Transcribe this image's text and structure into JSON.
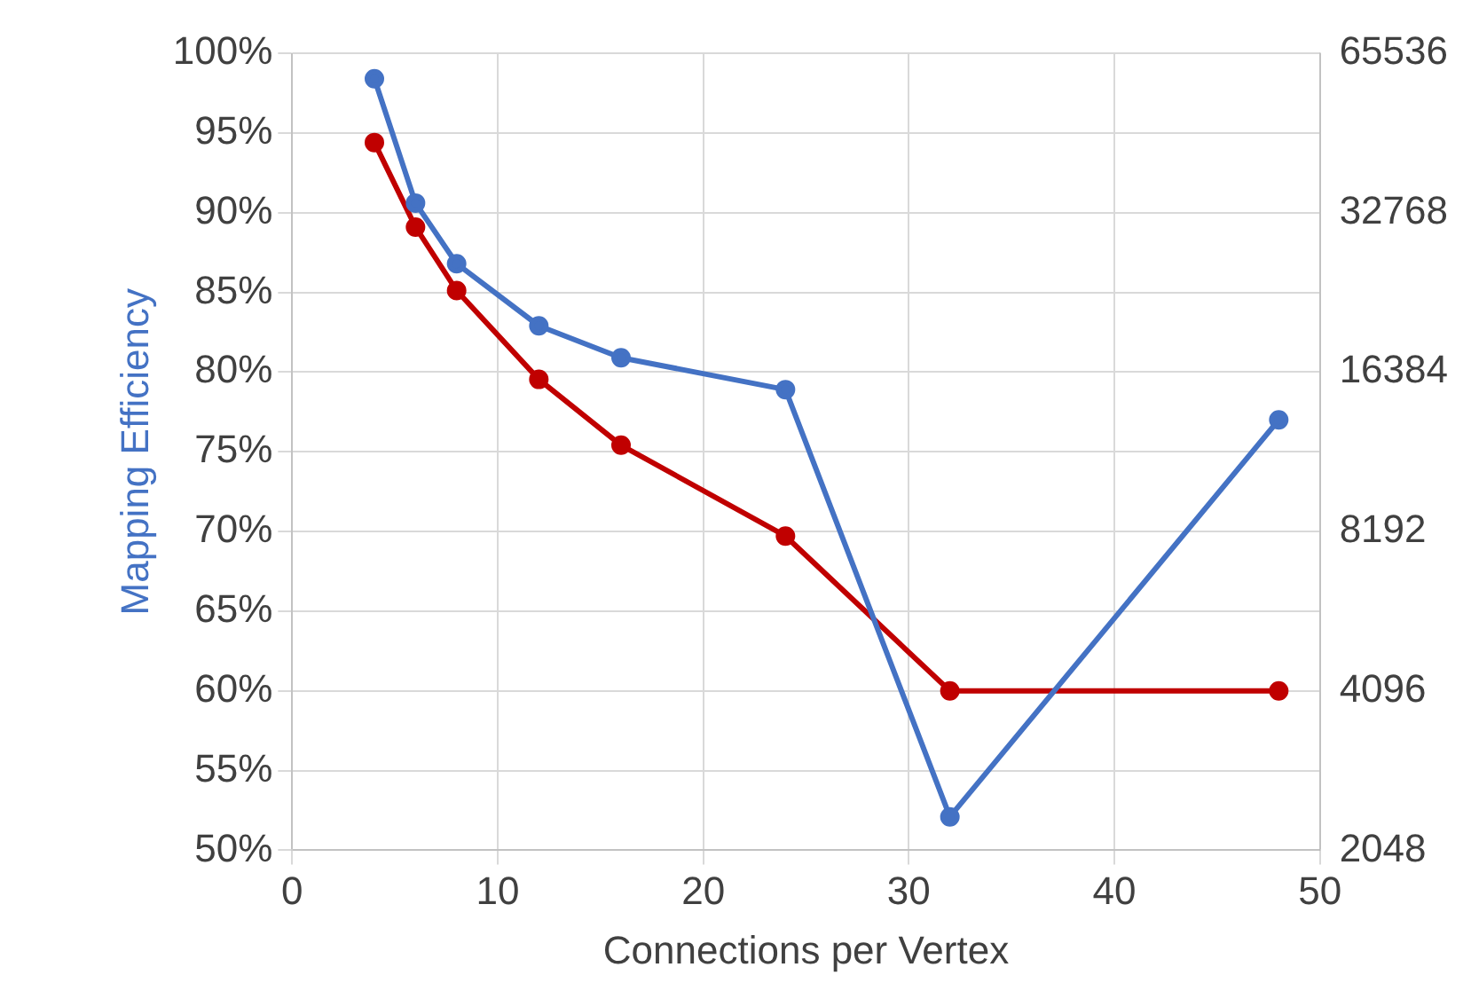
{
  "chart_data": {
    "type": "line",
    "xlabel": "Connections per Vertex",
    "ylabel": "Mapping Efficiency",
    "x": [
      4,
      6,
      8,
      12,
      16,
      24,
      32,
      48
    ],
    "series": [
      {
        "color": "#4472c4",
        "values": [
          98.4,
          90.6,
          86.8,
          82.9,
          80.9,
          78.9,
          52.1,
          77
        ]
      },
      {
        "color": "#c00000",
        "axis": "y2",
        "values": [
          44450,
          30780,
          23350,
          15870,
          11920,
          8030,
          4096,
          4096
        ]
      }
    ],
    "xlim": [
      0,
      50
    ],
    "xticks": [
      0,
      10,
      20,
      30,
      40,
      50
    ],
    "ylim": [
      50,
      100
    ],
    "yticks": [
      {
        "value": 50,
        "label": "50%"
      },
      {
        "value": 55,
        "label": "55%"
      },
      {
        "value": 60,
        "label": "60%"
      },
      {
        "value": 65,
        "label": "65%"
      },
      {
        "value": 70,
        "label": "70%"
      },
      {
        "value": 75,
        "label": "75%"
      },
      {
        "value": 80,
        "label": "80%"
      },
      {
        "value": 85,
        "label": "85%"
      },
      {
        "value": 90,
        "label": "90%"
      },
      {
        "value": 95,
        "label": "95%"
      },
      {
        "value": 100,
        "label": "100%"
      }
    ],
    "y2lim": [
      2048,
      65536
    ],
    "y2ticks": [
      2048,
      4096,
      8192,
      16384,
      32768,
      65536
    ],
    "log": "y2",
    "grid": true,
    "marker": "circle",
    "line_style": "solid"
  }
}
